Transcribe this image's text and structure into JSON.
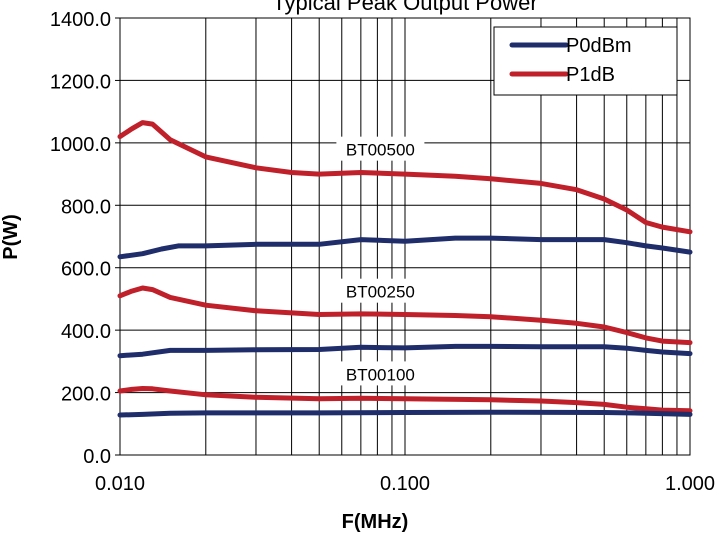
{
  "chart_data": {
    "type": "line",
    "title": "Typical Peak Output Power",
    "xlabel": "F(MHz)",
    "ylabel": "P(W)",
    "x_scale": "log",
    "xlim": [
      0.01,
      1.0
    ],
    "ylim": [
      0,
      1400
    ],
    "x_ticks": [
      {
        "value": 0.01,
        "label": "0.010"
      },
      {
        "value": 0.1,
        "label": "0.100"
      },
      {
        "value": 1.0,
        "label": "1.000"
      }
    ],
    "y_ticks": [
      {
        "value": 0,
        "label": "0.0"
      },
      {
        "value": 200,
        "label": "200.0"
      },
      {
        "value": 400,
        "label": "400.0"
      },
      {
        "value": 600,
        "label": "600.0"
      },
      {
        "value": 800,
        "label": "800.0"
      },
      {
        "value": 1000,
        "label": "1000.0"
      },
      {
        "value": 1200,
        "label": "1200.0"
      },
      {
        "value": 1400,
        "label": "1400.0"
      }
    ],
    "grid": true,
    "legend": {
      "placement": "top-right",
      "entries": [
        {
          "name": "P0dBm",
          "color": "#1f2d6b"
        },
        {
          "name": "P1dB",
          "color": "#c0202a"
        }
      ]
    },
    "annotations": [
      {
        "text": "BT00500",
        "x": 0.08,
        "y": 975
      },
      {
        "text": "BT00250",
        "x": 0.08,
        "y": 520
      },
      {
        "text": "BT00100",
        "x": 0.08,
        "y": 255
      }
    ],
    "series": [
      {
        "name": "P1dB",
        "group": "BT00500",
        "color": "#c0202a",
        "x": [
          0.01,
          0.011,
          0.012,
          0.013,
          0.015,
          0.02,
          0.03,
          0.04,
          0.05,
          0.07,
          0.1,
          0.15,
          0.2,
          0.3,
          0.4,
          0.5,
          0.6,
          0.7,
          0.8,
          1.0
        ],
        "y": [
          1020,
          1045,
          1065,
          1060,
          1010,
          955,
          920,
          905,
          900,
          905,
          900,
          893,
          885,
          870,
          850,
          820,
          785,
          745,
          730,
          715
        ]
      },
      {
        "name": "P0dBm",
        "group": "BT00500",
        "color": "#1f2d6b",
        "x": [
          0.01,
          0.012,
          0.014,
          0.016,
          0.02,
          0.03,
          0.05,
          0.07,
          0.1,
          0.15,
          0.2,
          0.3,
          0.5,
          0.6,
          0.7,
          0.8,
          1.0
        ],
        "y": [
          635,
          645,
          660,
          670,
          670,
          675,
          675,
          690,
          685,
          695,
          695,
          690,
          690,
          680,
          670,
          663,
          650
        ]
      },
      {
        "name": "P1dB",
        "group": "BT00250",
        "color": "#c0202a",
        "x": [
          0.01,
          0.011,
          0.012,
          0.013,
          0.015,
          0.02,
          0.03,
          0.05,
          0.07,
          0.1,
          0.15,
          0.2,
          0.3,
          0.4,
          0.5,
          0.6,
          0.7,
          0.8,
          1.0
        ],
        "y": [
          510,
          525,
          535,
          530,
          505,
          480,
          462,
          450,
          452,
          450,
          447,
          443,
          432,
          422,
          410,
          392,
          375,
          365,
          360
        ]
      },
      {
        "name": "P0dBm",
        "group": "BT00250",
        "color": "#1f2d6b",
        "x": [
          0.01,
          0.012,
          0.015,
          0.02,
          0.03,
          0.05,
          0.07,
          0.1,
          0.15,
          0.2,
          0.3,
          0.5,
          0.6,
          0.7,
          0.8,
          1.0
        ],
        "y": [
          318,
          323,
          335,
          335,
          337,
          338,
          345,
          343,
          348,
          348,
          347,
          347,
          342,
          335,
          330,
          325
        ]
      },
      {
        "name": "P1dB",
        "group": "BT00100",
        "color": "#c0202a",
        "x": [
          0.01,
          0.011,
          0.012,
          0.013,
          0.015,
          0.02,
          0.03,
          0.05,
          0.07,
          0.1,
          0.2,
          0.3,
          0.4,
          0.5,
          0.6,
          0.7,
          0.8,
          1.0
        ],
        "y": [
          205,
          210,
          213,
          212,
          205,
          193,
          185,
          180,
          182,
          180,
          177,
          173,
          168,
          162,
          153,
          148,
          144,
          142
        ]
      },
      {
        "name": "P0dBm",
        "group": "BT00100",
        "color": "#1f2d6b",
        "x": [
          0.01,
          0.012,
          0.015,
          0.02,
          0.05,
          0.1,
          0.2,
          0.5,
          0.7,
          1.0
        ],
        "y": [
          128,
          130,
          134,
          135,
          135,
          136,
          137,
          136,
          134,
          130
        ]
      }
    ]
  }
}
